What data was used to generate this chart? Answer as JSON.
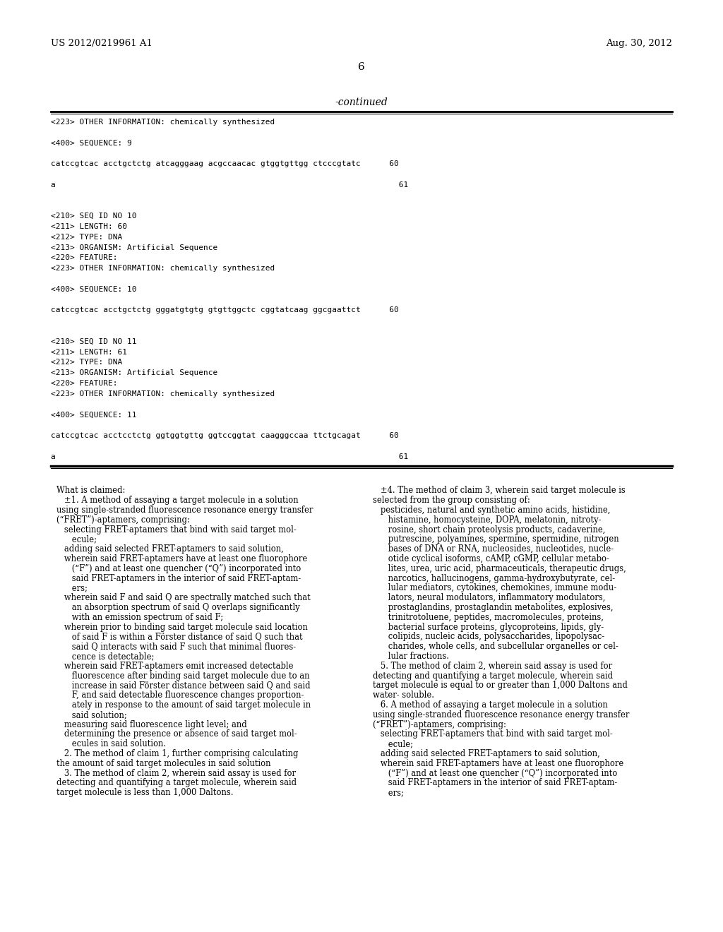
{
  "bg_color": "#ffffff",
  "header_left": "US 2012/0219961 A1",
  "header_right": "Aug. 30, 2012",
  "page_number": "6",
  "continued_label": "-continued",
  "top_section_lines": [
    "<223> OTHER INFORMATION: chemically synthesized",
    "",
    "<400> SEQUENCE: 9",
    "",
    "catccgtcac acctgctctg atcagggaag acgccaacac gtggtgttgg ctcccgtatc      60",
    "",
    "a                                                                        61",
    "",
    "",
    "<210> SEQ ID NO 10",
    "<211> LENGTH: 60",
    "<212> TYPE: DNA",
    "<213> ORGANISM: Artificial Sequence",
    "<220> FEATURE:",
    "<223> OTHER INFORMATION: chemically synthesized",
    "",
    "<400> SEQUENCE: 10",
    "",
    "catccgtcac acctgctctg gggatgtgtg gtgttggctc cggtatcaag ggcgaattct      60",
    "",
    "",
    "<210> SEQ ID NO 11",
    "<211> LENGTH: 61",
    "<212> TYPE: DNA",
    "<213> ORGANISM: Artificial Sequence",
    "<220> FEATURE:",
    "<223> OTHER INFORMATION: chemically synthesized",
    "",
    "<400> SEQUENCE: 11",
    "",
    "catccgtcac acctcctctg ggtggtgttg ggtccggtat caagggccaa ttctgcagat      60",
    "",
    "a                                                                        61"
  ],
  "bottom_left_lines": [
    "What is claimed:",
    "   ±1. A method of assaying a target molecule in a solution",
    "using single-stranded fluorescence resonance energy transfer",
    "(“FRET”)-aptamers, comprising:",
    "   selecting FRET-aptamers that bind with said target mol-",
    "      ecule;",
    "   adding said selected FRET-aptamers to said solution,",
    "   wherein said FRET-aptamers have at least one fluorophore",
    "      (“F”) and at least one quencher (“Q”) incorporated into",
    "      said FRET-aptamers in the interior of said FRET-aptam-",
    "      ers;",
    "   wherein said F and said Q are spectrally matched such that",
    "      an absorption spectrum of said Q overlaps significantly",
    "      with an emission spectrum of said F;",
    "   wherein prior to binding said target molecule said location",
    "      of said F is within a Förster distance of said Q such that",
    "      said Q interacts with said F such that minimal fluores-",
    "      cence is detectable;",
    "   wherein said FRET-aptamers emit increased detectable",
    "      fluorescence after binding said target molecule due to an",
    "      increase in said Förster distance between said Q and said",
    "      F, and said detectable fluorescence changes proportion-",
    "      ately in response to the amount of said target molecule in",
    "      said solution;",
    "   measuring said fluorescence light level; and",
    "   determining the presence or absence of said target mol-",
    "      ecules in said solution.",
    "   2. The method of claim 1, further comprising calculating",
    "the amount of said target molecules in said solution",
    "   3. The method of claim 2, wherein said assay is used for",
    "detecting and quantifying a target molecule, wherein said",
    "target molecule is less than 1,000 Daltons."
  ],
  "bottom_left_bold": [
    1
  ],
  "bottom_right_lines": [
    "   ±4. The method of claim 3, wherein said target molecule is",
    "selected from the group consisting of:",
    "   pesticides, natural and synthetic amino acids, histidine,",
    "      histamine, homocysteine, DOPA, melatonin, nitroty-",
    "      rosine, short chain proteolysis products, cadaverine,",
    "      putrescine, polyamines, spermine, spermidine, nitrogen",
    "      bases of DNA or RNA, nucleosides, nucleotides, nucle-",
    "      otide cyclical isoforms, cAMP, cGMP, cellular metabo-",
    "      lites, urea, uric acid, pharmaceuticals, therapeutic drugs,",
    "      narcotics, hallucinogens, gamma-hydroxybutyrate, cel-",
    "      lular mediators, cytokines, chemokines, immune modu-",
    "      lators, neural modulators, inflammatory modulators,",
    "      prostaglandins, prostaglandin metabolites, explosives,",
    "      trinitrotoluene, peptides, macromolecules, proteins,",
    "      bacterial surface proteins, glycoproteins, lipids, gly-",
    "      colipids, nucleic acids, polysaccharides, lipopolysac-",
    "      charides, whole cells, and subcellular organelles or cel-",
    "      lular fractions.",
    "   5. The method of claim 2, wherein said assay is used for",
    "detecting and quantifying a target molecule, wherein said",
    "target molecule is equal to or greater than 1,000 Daltons and",
    "water- soluble.",
    "   6. A method of assaying a target molecule in a solution",
    "using single-stranded fluorescence resonance energy transfer",
    "(“FRET”)-aptamers, comprising:",
    "   selecting FRET-aptamers that bind with said target mol-",
    "      ecule;",
    "   adding said selected FRET-aptamers to said solution,",
    "   wherein said FRET-aptamers have at least one fluorophore",
    "      (“F”) and at least one quencher (“Q”) incorporated into",
    "      said FRET-aptamers in the interior of said FRET-aptam-",
    "      ers;"
  ],
  "bottom_right_bold": [
    0
  ]
}
